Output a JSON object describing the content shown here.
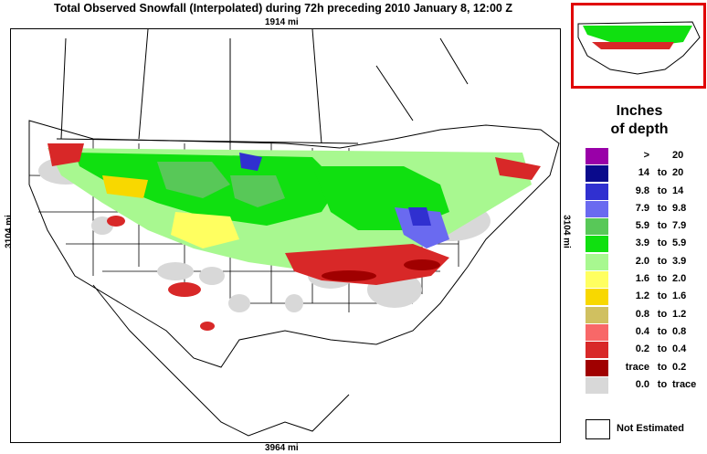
{
  "title": "Total Observed Snowfall (Interpolated) during 72h preceding 2010 January 8, 12:00 Z",
  "dimensions": {
    "top": "1914 mi",
    "bottom": "3964 mi",
    "left": "3104 mi",
    "right": "3104 mi"
  },
  "legend": {
    "title_line1": "Inches",
    "title_line2": "of depth",
    "items": [
      {
        "low": ">",
        "sep": "",
        "high": "20",
        "color": "#9900a8"
      },
      {
        "low": "14",
        "sep": "to",
        "high": "20",
        "color": "#0a0a8c"
      },
      {
        "low": "9.8",
        "sep": "to",
        "high": "14",
        "color": "#3030d0"
      },
      {
        "low": "7.9",
        "sep": "to",
        "high": "9.8",
        "color": "#6a6af0"
      },
      {
        "low": "5.9",
        "sep": "to",
        "high": "7.9",
        "color": "#58c858"
      },
      {
        "low": "3.9",
        "sep": "to",
        "high": "5.9",
        "color": "#10e010"
      },
      {
        "low": "2.0",
        "sep": "to",
        "high": "3.9",
        "color": "#a8f890"
      },
      {
        "low": "1.6",
        "sep": "to",
        "high": "2.0",
        "color": "#ffff60"
      },
      {
        "low": "1.2",
        "sep": "to",
        "high": "1.6",
        "color": "#f8d800"
      },
      {
        "low": "0.8",
        "sep": "to",
        "high": "1.2",
        "color": "#d0c060"
      },
      {
        "low": "0.4",
        "sep": "to",
        "high": "0.8",
        "color": "#f86868"
      },
      {
        "low": "0.2",
        "sep": "to",
        "high": "0.4",
        "color": "#d82828"
      },
      {
        "low": "trace",
        "sep": "to",
        "high": "0.2",
        "color": "#a00000"
      },
      {
        "low": "0.0",
        "sep": "to",
        "high": "trace",
        "color": "#d8d8d8"
      }
    ],
    "not_estimated": "Not Estimated"
  },
  "colors": {
    "inset_border": "#e00000",
    "boundary": "#000000"
  }
}
